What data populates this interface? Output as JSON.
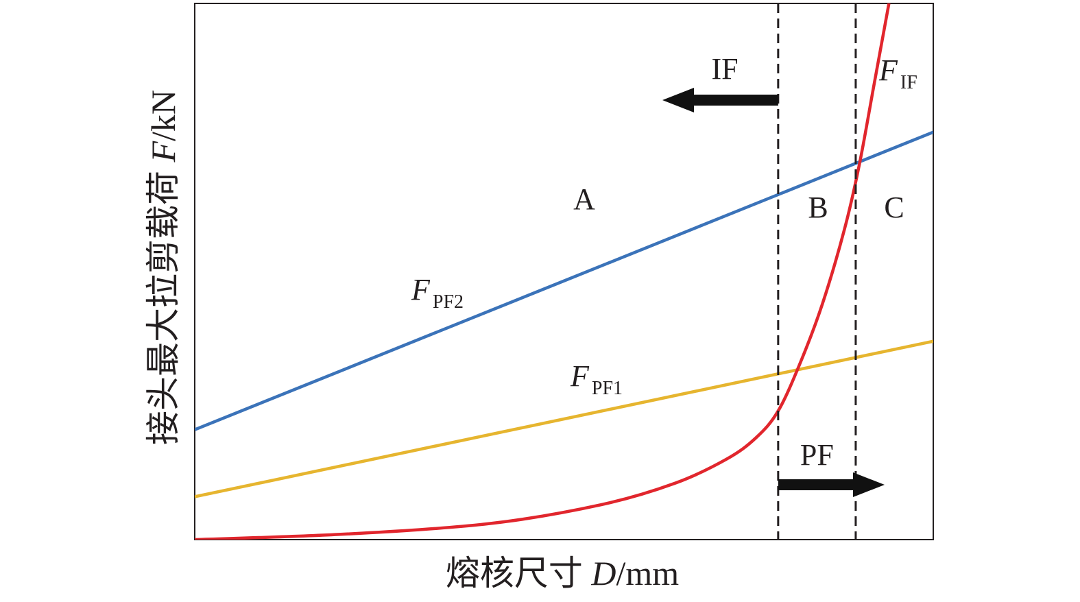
{
  "chart_data": {
    "type": "line",
    "title": "",
    "xlabel": {
      "prefix": "熔核尺寸 ",
      "symbol": "D",
      "unit": "/mm"
    },
    "ylabel": {
      "prefix": "接头最大拉剪载荷 ",
      "symbol": "F",
      "unit": "/kN"
    },
    "xlim": [
      0,
      100
    ],
    "ylim": [
      0,
      100
    ],
    "grid": false,
    "legend": "none",
    "series": [
      {
        "label": "F",
        "sub": "PF2",
        "color": "#3b73b9",
        "kind": "linear",
        "points": [
          [
            0,
            20.5
          ],
          [
            100,
            76
          ]
        ]
      },
      {
        "label": "F",
        "sub": "PF1",
        "color": "#e6b52f",
        "kind": "linear",
        "points": [
          [
            0,
            8
          ],
          [
            100,
            37
          ]
        ]
      },
      {
        "label": "F",
        "sub": "IF",
        "color": "#e1262d",
        "kind": "curve",
        "points": [
          [
            0,
            0
          ],
          [
            20,
            1
          ],
          [
            40,
            3
          ],
          [
            55,
            6.5
          ],
          [
            65,
            10.5
          ],
          [
            72,
            15
          ],
          [
            76,
            19
          ],
          [
            79,
            24
          ],
          [
            82,
            33
          ],
          [
            85,
            44
          ],
          [
            88,
            58
          ],
          [
            90,
            70
          ],
          [
            92,
            85
          ],
          [
            94,
            100
          ]
        ]
      }
    ],
    "vlines": [
      79,
      89.5
    ],
    "regions": [
      "A",
      "B",
      "C"
    ],
    "arrows": [
      {
        "label": "IF",
        "direction": "left"
      },
      {
        "label": "PF",
        "direction": "right"
      }
    ]
  }
}
